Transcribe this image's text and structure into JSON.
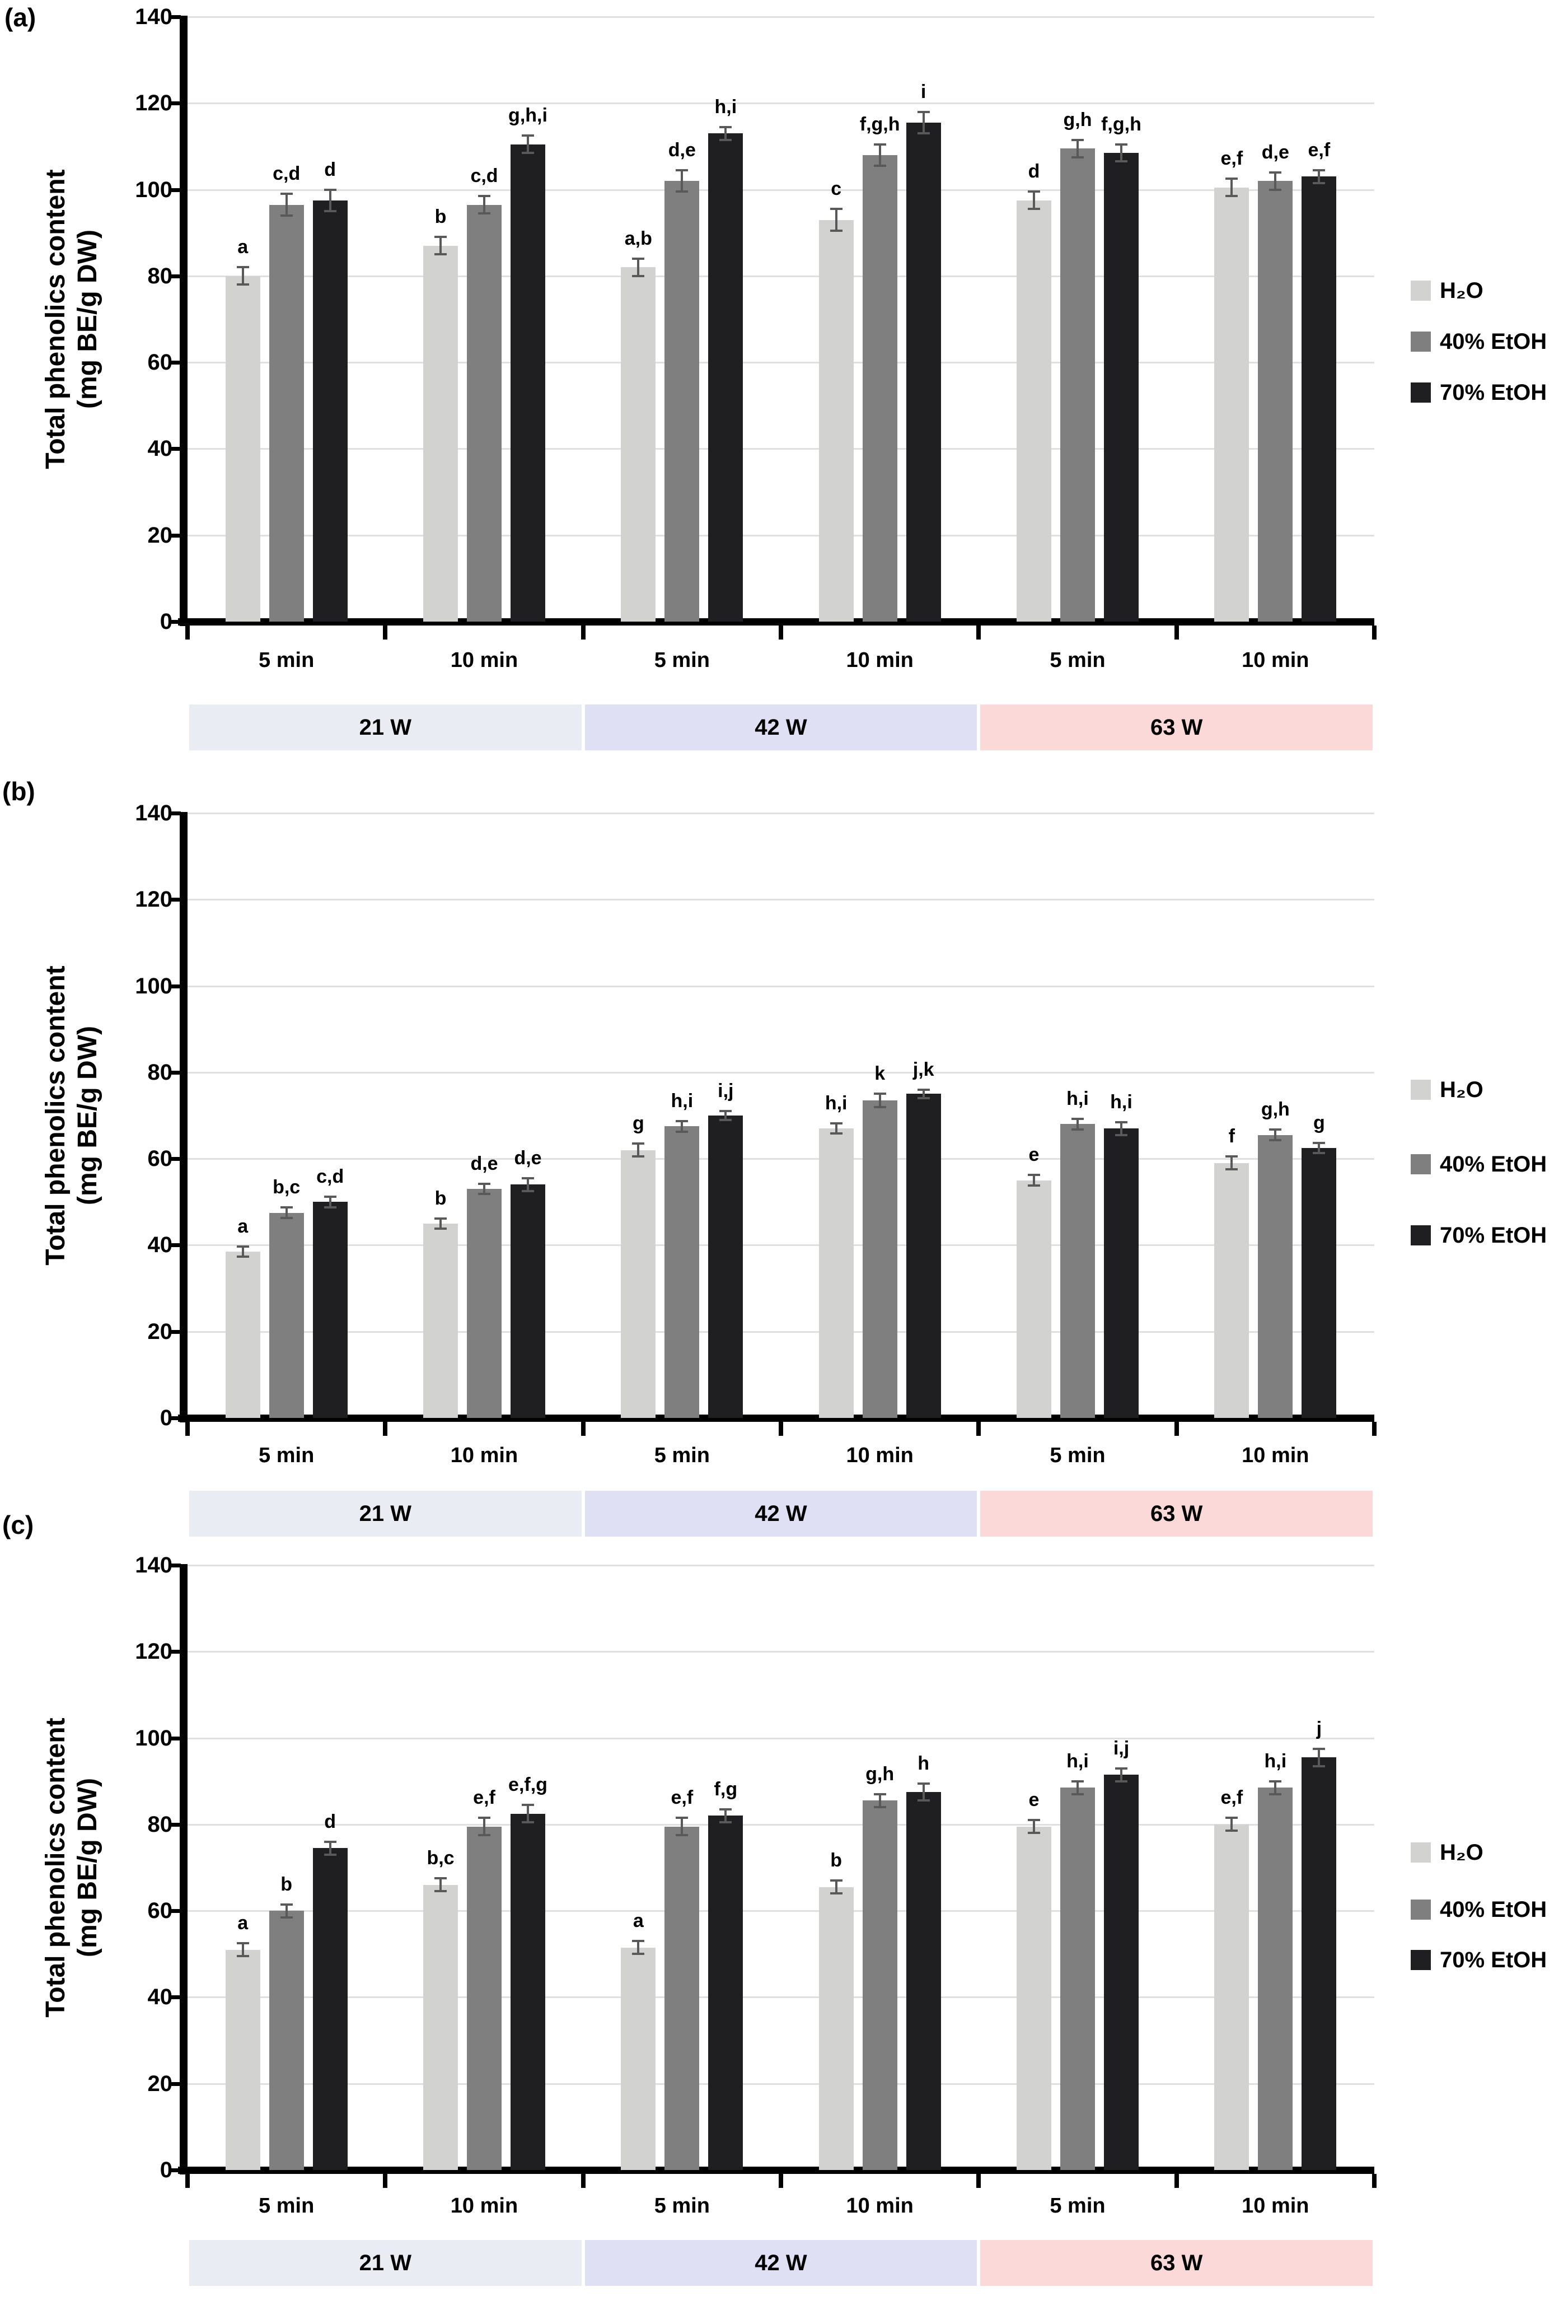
{
  "figure": {
    "background": "#ffffff",
    "grid_color": "#e0e0e0",
    "axis_color": "#000000",
    "error_bar_color": "#595959"
  },
  "chart_data": [
    {
      "type": "bar",
      "panel_label": "(a)",
      "ylabel": "Total phenolics content (mg BE/g DW)",
      "ylabel_line1": "Total phenolics content",
      "ylabel_line2": "(mg BE/g DW)",
      "ylim": [
        0,
        140
      ],
      "yticks": [
        0,
        20,
        40,
        60,
        80,
        100,
        120,
        140
      ],
      "grid": true,
      "legend_position": "right",
      "categories": [
        "5 min",
        "10 min",
        "5 min",
        "10 min",
        "5 min",
        "10 min"
      ],
      "power_bands": [
        {
          "label": "21 W",
          "color": "#e9edf3"
        },
        {
          "label": "42 W",
          "color": "#dfe0f3"
        },
        {
          "label": "63 W",
          "color": "#fbd9d9"
        }
      ],
      "series": [
        {
          "name": "H₂O",
          "color": "#d2d2d0",
          "values": [
            80,
            87,
            82,
            93,
            97.5,
            100.5
          ],
          "errors": [
            2,
            2,
            2,
            2.5,
            2,
            2
          ],
          "sig_labels": [
            "a",
            "b",
            "a,b",
            "c",
            "d",
            "e,f"
          ]
        },
        {
          "name": "40% EtOH",
          "color": "#7f7f7f",
          "values": [
            96.5,
            96.5,
            102,
            108,
            109.5,
            102
          ],
          "errors": [
            2.5,
            2,
            2.5,
            2.5,
            2,
            2
          ],
          "sig_labels": [
            "c,d",
            "c,d",
            "d,e",
            "f,g,h",
            "g,h",
            "d,e"
          ]
        },
        {
          "name": "70% EtOH",
          "color": "#1f1f22",
          "values": [
            97.5,
            110.5,
            113,
            115.5,
            108.5,
            103
          ],
          "errors": [
            2.5,
            2,
            1.5,
            2.5,
            2,
            1.5
          ],
          "sig_labels": [
            "d",
            "g,h,i",
            "h,i",
            "i",
            "f,g,h",
            "e,f"
          ]
        }
      ]
    },
    {
      "type": "bar",
      "panel_label": "(b)",
      "ylabel": "Total phenolics content (mg BE/g DW)",
      "ylabel_line1": "Total phenolics content",
      "ylabel_line2": "(mg BE/g DW)",
      "ylim": [
        0,
        140
      ],
      "yticks": [
        0,
        20,
        40,
        60,
        80,
        100,
        120,
        140
      ],
      "grid": true,
      "legend_position": "right",
      "categories": [
        "5 min",
        "10 min",
        "5 min",
        "10 min",
        "5 min",
        "10 min"
      ],
      "power_bands": [
        {
          "label": "21 W",
          "color": "#e9edf3"
        },
        {
          "label": "42 W",
          "color": "#dfe0f3"
        },
        {
          "label": "63 W",
          "color": "#fbd9d9"
        }
      ],
      "series": [
        {
          "name": "H₂O",
          "color": "#d2d2d0",
          "values": [
            38.5,
            45,
            62,
            67,
            55,
            59
          ],
          "errors": [
            1.2,
            1.2,
            1.5,
            1.2,
            1.2,
            1.5
          ],
          "sig_labels": [
            "a",
            "b",
            "g",
            "h,i",
            "e",
            "f"
          ]
        },
        {
          "name": "40% EtOH",
          "color": "#7f7f7f",
          "values": [
            47.5,
            53,
            67.5,
            73.5,
            68,
            65.5
          ],
          "errors": [
            1.2,
            1.2,
            1.2,
            1.5,
            1.2,
            1.2
          ],
          "sig_labels": [
            "b,c",
            "d,e",
            "h,i",
            "k",
            "h,i",
            "g,h"
          ]
        },
        {
          "name": "70% EtOH",
          "color": "#1f1f22",
          "values": [
            50,
            54,
            70,
            75,
            67,
            62.5
          ],
          "errors": [
            1.2,
            1.5,
            1,
            1,
            1.5,
            1.2
          ],
          "sig_labels": [
            "c,d",
            "d,e",
            "i,j",
            "j,k",
            "h,i",
            "g"
          ]
        }
      ]
    },
    {
      "type": "bar",
      "panel_label": "(c)",
      "ylabel": "Total phenolics content (mg BE/g DW)",
      "ylabel_line1": "Total phenolics content",
      "ylabel_line2": "(mg BE/g DW)",
      "ylim": [
        0,
        140
      ],
      "yticks": [
        0,
        20,
        40,
        60,
        80,
        100,
        120,
        140
      ],
      "grid": true,
      "legend_position": "right",
      "categories": [
        "5 min",
        "10 min",
        "5 min",
        "10 min",
        "5 min",
        "10 min"
      ],
      "power_bands": [
        {
          "label": "21 W",
          "color": "#e9edf3"
        },
        {
          "label": "42 W",
          "color": "#dfe0f3"
        },
        {
          "label": "63 W",
          "color": "#fbd9d9"
        }
      ],
      "series": [
        {
          "name": "H₂O",
          "color": "#d2d2d0",
          "values": [
            51,
            66,
            51.5,
            65.5,
            79.5,
            80
          ],
          "errors": [
            1.5,
            1.5,
            1.5,
            1.5,
            1.5,
            1.5
          ],
          "sig_labels": [
            "a",
            "b,c",
            "a",
            "b",
            "e",
            "e,f"
          ]
        },
        {
          "name": "40% EtOH",
          "color": "#7f7f7f",
          "values": [
            60,
            79.5,
            79.5,
            85.5,
            88.5,
            88.5
          ],
          "errors": [
            1.5,
            2,
            2,
            1.5,
            1.5,
            1.5
          ],
          "sig_labels": [
            "b",
            "e,f",
            "e,f",
            "g,h",
            "h,i",
            "h,i"
          ]
        },
        {
          "name": "70% EtOH",
          "color": "#1f1f22",
          "values": [
            74.5,
            82.5,
            82,
            87.5,
            91.5,
            95.5
          ],
          "errors": [
            1.5,
            2,
            1.5,
            2,
            1.5,
            2
          ],
          "sig_labels": [
            "d",
            "e,f,g",
            "f,g",
            "h",
            "i,j",
            "j"
          ]
        }
      ]
    }
  ]
}
